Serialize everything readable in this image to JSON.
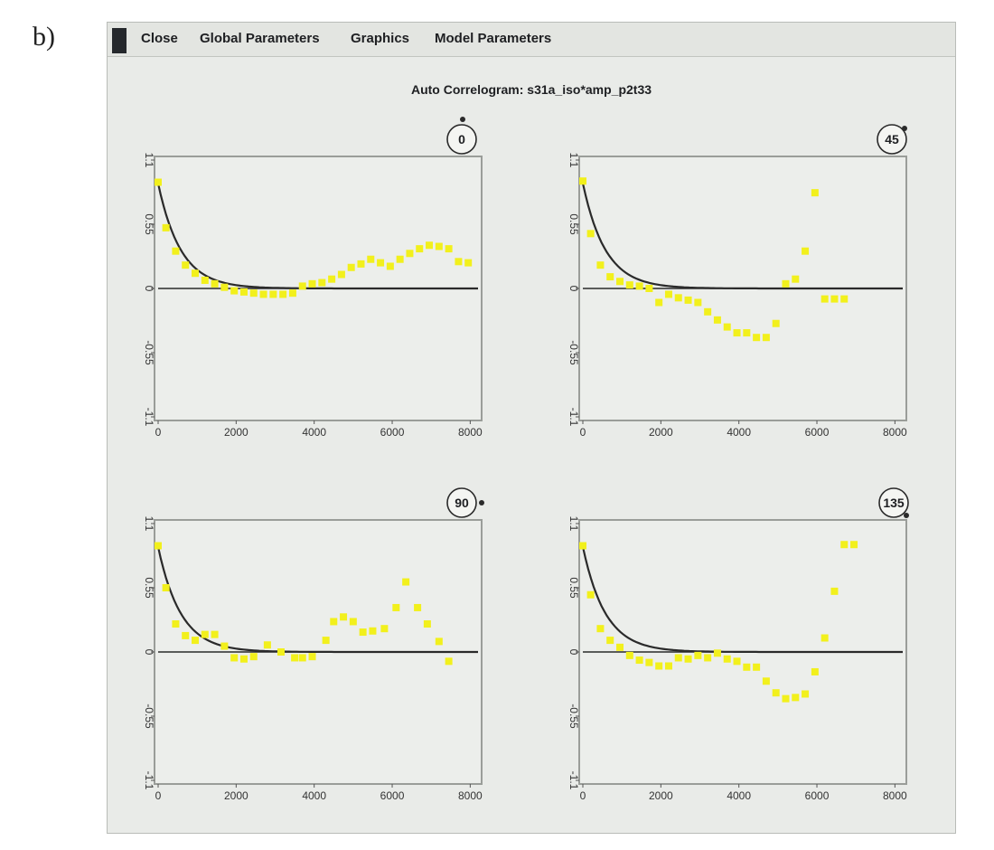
{
  "panel_label": "b)",
  "menu": {
    "items": [
      "Close",
      "Global Parameters",
      "Graphics",
      "Model Parameters"
    ]
  },
  "window_title": "Auto Correlogram: s31a_iso*amp_p2t33",
  "colors": {
    "points": "#f2f01c",
    "model": "#2a2a2a",
    "zero_line": "#2a2a2a",
    "frame": "#9a9d99",
    "plot_bg": "#eceeeb"
  },
  "chart_data": [
    {
      "type": "scatter",
      "direction_label": "0",
      "xlim": [
        0,
        8200
      ],
      "ylim": [
        -1.1,
        1.1
      ],
      "xticks": [
        "0",
        "2000",
        "4000",
        "6000",
        "8000"
      ],
      "yticks": [
        "1.1",
        "0.55",
        "0",
        "-0.55",
        "-1.1"
      ],
      "model": {
        "type": "exponential",
        "sill": 0.9,
        "range": 580
      },
      "points": {
        "x": [
          0,
          200,
          450,
          700,
          950,
          1200,
          1450,
          1700,
          1950,
          2200,
          2450,
          2700,
          2950,
          3200,
          3450,
          3700,
          3950,
          4200,
          4450,
          4700,
          4950,
          5200,
          5450,
          5700,
          5950,
          6200,
          6450,
          6700,
          6950,
          7200,
          7450,
          7700,
          7950
        ],
        "y": [
          0.91,
          0.52,
          0.32,
          0.2,
          0.13,
          0.07,
          0.04,
          0.01,
          -0.02,
          -0.03,
          -0.04,
          -0.05,
          -0.05,
          -0.05,
          -0.04,
          0.02,
          0.04,
          0.05,
          0.08,
          0.12,
          0.18,
          0.21,
          0.25,
          0.22,
          0.19,
          0.25,
          0.3,
          0.34,
          0.37,
          0.36,
          0.34,
          0.23,
          0.22
        ]
      }
    },
    {
      "type": "scatter",
      "direction_label": "45",
      "xlim": [
        0,
        8200
      ],
      "ylim": [
        -1.1,
        1.1
      ],
      "xticks": [
        "0",
        "2000",
        "4000",
        "6000",
        "8000"
      ],
      "yticks": [
        "1.1",
        "0.55",
        "0",
        "-0.55",
        "-1.1"
      ],
      "model": {
        "type": "exponential",
        "sill": 0.9,
        "range": 580
      },
      "points": {
        "x": [
          0,
          200,
          450,
          700,
          950,
          1200,
          1450,
          1700,
          1950,
          2200,
          2450,
          2700,
          2950,
          3200,
          3450,
          3700,
          3950,
          4200,
          4450,
          4700,
          4950,
          5200,
          5450,
          5700,
          5950,
          6200,
          6450,
          6700
        ],
        "y": [
          0.92,
          0.47,
          0.2,
          0.1,
          0.06,
          0.03,
          0.02,
          0.0,
          -0.12,
          -0.05,
          -0.08,
          -0.1,
          -0.12,
          -0.2,
          -0.27,
          -0.33,
          -0.38,
          -0.38,
          -0.42,
          -0.42,
          -0.3,
          0.04,
          0.08,
          0.32,
          0.82,
          -0.09,
          -0.09,
          -0.09
        ]
      }
    },
    {
      "type": "scatter",
      "direction_label": "90",
      "xlim": [
        0,
        8200
      ],
      "ylim": [
        -1.1,
        1.1
      ],
      "xticks": [
        "0",
        "2000",
        "4000",
        "6000",
        "8000"
      ],
      "yticks": [
        "1.1",
        "0.55",
        "0",
        "-0.55",
        "-1.1"
      ],
      "model": {
        "type": "exponential",
        "sill": 0.9,
        "range": 580
      },
      "points": {
        "x": [
          0,
          200,
          450,
          700,
          950,
          1200,
          1450,
          1700,
          1950,
          2200,
          2450,
          2800,
          3150,
          3500,
          3700,
          3950,
          4300,
          4500,
          4750,
          5000,
          5250,
          5500,
          5800,
          6100,
          6350,
          6650,
          6900,
          7200,
          7450
        ],
        "y": [
          0.91,
          0.55,
          0.24,
          0.14,
          0.1,
          0.15,
          0.15,
          0.05,
          -0.05,
          -0.06,
          -0.04,
          0.06,
          0.0,
          -0.05,
          -0.05,
          -0.04,
          0.1,
          0.26,
          0.3,
          0.26,
          0.17,
          0.18,
          0.2,
          0.38,
          0.6,
          0.38,
          0.24,
          0.09,
          -0.08
        ]
      }
    },
    {
      "type": "scatter",
      "direction_label": "135",
      "xlim": [
        0,
        8200
      ],
      "ylim": [
        -1.1,
        1.1
      ],
      "xticks": [
        "0",
        "2000",
        "4000",
        "6000",
        "8000"
      ],
      "yticks": [
        "1.1",
        "0.55",
        "0",
        "-0.55",
        "-1.1"
      ],
      "model": {
        "type": "exponential",
        "sill": 0.9,
        "range": 580
      },
      "points": {
        "x": [
          0,
          200,
          450,
          700,
          950,
          1200,
          1450,
          1700,
          1950,
          2200,
          2450,
          2700,
          2950,
          3200,
          3450,
          3700,
          3950,
          4200,
          4450,
          4700,
          4950,
          5200,
          5450,
          5700,
          5950,
          6200,
          6450,
          6700,
          6950
        ],
        "y": [
          0.91,
          0.49,
          0.2,
          0.1,
          0.04,
          -0.03,
          -0.07,
          -0.09,
          -0.12,
          -0.12,
          -0.05,
          -0.06,
          -0.03,
          -0.05,
          -0.01,
          -0.06,
          -0.08,
          -0.13,
          -0.13,
          -0.25,
          -0.35,
          -0.4,
          -0.39,
          -0.36,
          -0.17,
          0.12,
          0.52,
          0.92,
          0.92
        ]
      }
    }
  ]
}
